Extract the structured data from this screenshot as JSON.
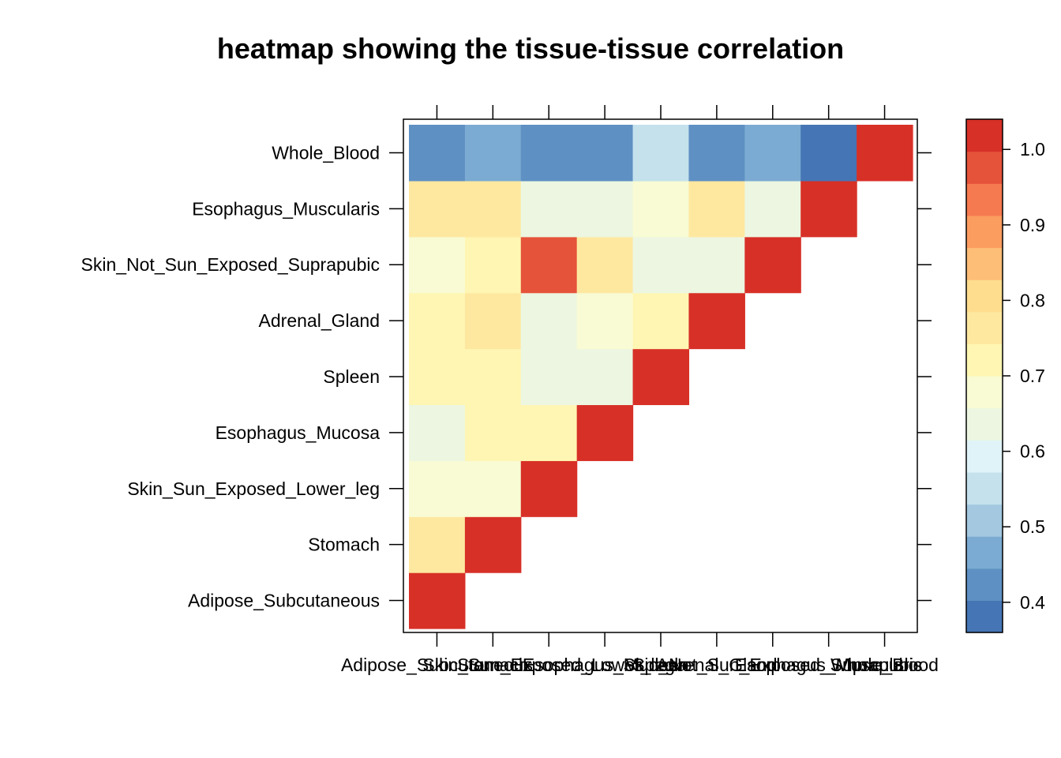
{
  "chart_data": {
    "type": "heatmap",
    "title": "heatmap showing the tissue-tissue correlation",
    "xlabel": "",
    "ylabel": "",
    "x_labels": [
      "Adipose_Subcutaneous",
      "Stomach",
      "Skin_Sun_Exposed_Lower_leg",
      "Esophagus_Mucosa",
      "Spleen",
      "Adrenal_Gland",
      "Skin_Not_Sun_Exposed_Suprapubic",
      "Esophagus_Muscularis",
      "Whole_Blood"
    ],
    "y_labels": [
      "Adipose_Subcutaneous",
      "Stomach",
      "Skin_Sun_Exposed_Lower_leg",
      "Esophagus_Mucosa",
      "Spleen",
      "Adrenal_Gland",
      "Skin_Not_Sun_Exposed_Suprapubic",
      "Esophagus_Muscularis",
      "Whole_Blood"
    ],
    "matrix_lower_triangle_note": "values[i][j] is correlation between y_labels[i] (row) and x_labels[j] (column); null = blank cell",
    "values": [
      [
        1.0,
        null,
        null,
        null,
        null,
        null,
        null,
        null,
        null
      ],
      [
        0.77,
        1.0,
        null,
        null,
        null,
        null,
        null,
        null,
        null
      ],
      [
        0.69,
        0.69,
        1.0,
        null,
        null,
        null,
        null,
        null,
        null
      ],
      [
        0.65,
        0.72,
        0.72,
        1.0,
        null,
        null,
        null,
        null,
        null
      ],
      [
        0.72,
        0.72,
        0.65,
        0.65,
        1.0,
        null,
        null,
        null,
        null
      ],
      [
        0.72,
        0.77,
        0.65,
        0.69,
        0.72,
        1.0,
        null,
        null,
        null
      ],
      [
        0.69,
        0.72,
        0.97,
        0.77,
        0.65,
        0.65,
        1.0,
        null,
        null
      ],
      [
        0.77,
        0.77,
        0.65,
        0.65,
        0.69,
        0.78,
        0.65,
        1.0,
        null
      ],
      [
        0.42,
        0.48,
        0.42,
        0.42,
        0.56,
        0.42,
        0.48,
        0.38,
        1.0
      ]
    ],
    "colorbar": {
      "ticks": [
        "0.4",
        "0.5",
        "0.6",
        "0.7",
        "0.8",
        "0.9",
        "1.0"
      ],
      "tick_values": [
        0.4,
        0.5,
        0.6,
        0.7,
        0.8,
        0.9,
        1.0
      ],
      "range": [
        0.36,
        1.04
      ],
      "colors": [
        "#4575B4",
        "#5E90C3",
        "#7BABD2",
        "#A3C8E0",
        "#C4E1EC",
        "#E0F3F8",
        "#ECF6E1",
        "#F8FBD3",
        "#FFF6B3",
        "#FEE8A0",
        "#FEDD8F",
        "#FDBE78",
        "#FC9D60",
        "#F67A4F",
        "#E5533A",
        "#D73027"
      ]
    }
  }
}
